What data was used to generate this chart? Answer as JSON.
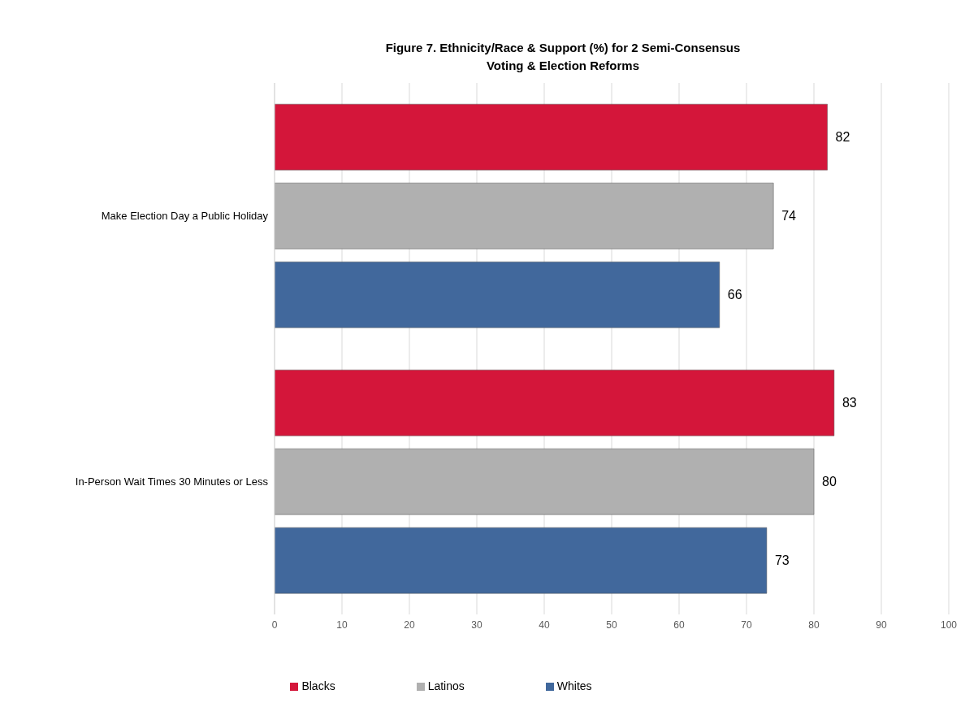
{
  "chart_data": {
    "type": "bar",
    "orientation": "horizontal",
    "title": "Figure 7. Ethnicity/Race & Support (%) for 2 Semi-Consensus\nVoting & Election Reforms",
    "categories": [
      "Make Election Day a Public Holiday",
      "In-Person Wait Times 30 Minutes or Less"
    ],
    "series": [
      {
        "name": "Blacks",
        "color": "#d4163a",
        "values": [
          82,
          83
        ]
      },
      {
        "name": "Latinos",
        "color": "#b0b0b0",
        "values": [
          74,
          80
        ]
      },
      {
        "name": "Whites",
        "color": "#41689c",
        "values": [
          66,
          73
        ]
      }
    ],
    "xlim": [
      0,
      100
    ],
    "xticks": [
      0,
      10,
      20,
      30,
      40,
      50,
      60,
      70,
      80,
      90,
      100
    ],
    "grid": "x",
    "legend": "bottom",
    "data_labels": true
  }
}
